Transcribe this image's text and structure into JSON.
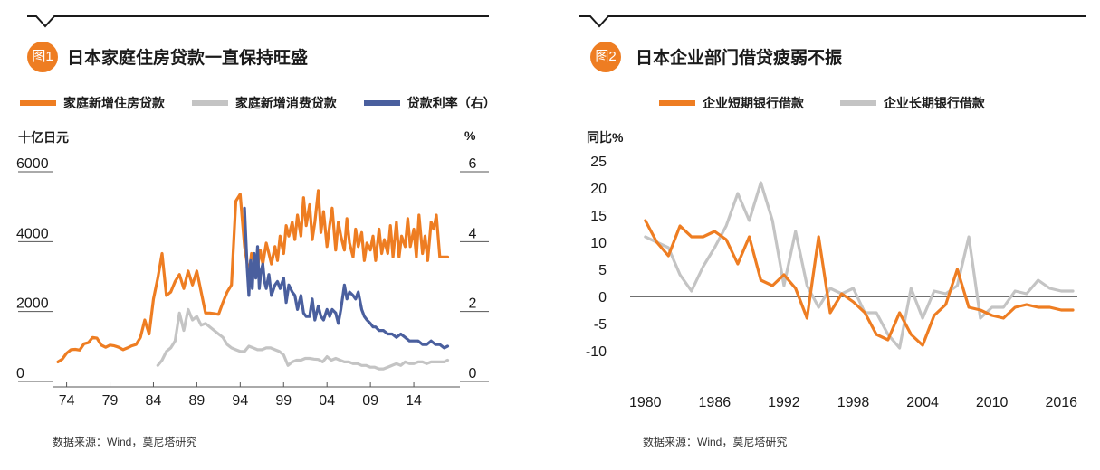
{
  "colors": {
    "orange": "#ee7d22",
    "gray": "#c4c4c4",
    "blue": "#4a5f9e",
    "text": "#1a1a1a"
  },
  "charts": [
    {
      "badge": "图1",
      "title": "日本家庭住房贷款一直保持旺盛",
      "source": "数据来源：Wind，莫尼塔研究",
      "left_unit": "十亿日元",
      "right_unit": "%"
    },
    {
      "badge": "图2",
      "title": "日本企业部门借贷疲弱不振",
      "source": "数据来源：Wind，莫尼塔研究",
      "left_unit": "同比%"
    }
  ],
  "chart_data": [
    {
      "type": "line",
      "title": "日本家庭住房贷款一直保持旺盛",
      "ylabel": "十亿日元",
      "y2label": "%",
      "ylim": [
        0,
        6000
      ],
      "y2lim": [
        0,
        6
      ],
      "yticks": [
        "0",
        "2000",
        "4000",
        "6000"
      ],
      "y2ticks": [
        "0",
        "2",
        "4",
        "6"
      ],
      "xlim": [
        1973,
        2019
      ],
      "xticks": [
        {
          "label": "74",
          "value": 1974
        },
        {
          "label": "79",
          "value": 1979
        },
        {
          "label": "84",
          "value": 1984
        },
        {
          "label": "89",
          "value": 1989
        },
        {
          "label": "94",
          "value": 1994
        },
        {
          "label": "99",
          "value": 1999
        },
        {
          "label": "04",
          "value": 2004
        },
        {
          "label": "09",
          "value": 2009
        },
        {
          "label": "14",
          "value": 2014
        }
      ],
      "series": [
        {
          "name": "家庭新增住房贷款",
          "color": "#ee7d22",
          "axis": "left",
          "x": [
            1973.0,
            1973.5,
            1974.0,
            1974.5,
            1975.0,
            1975.5,
            1976.0,
            1976.5,
            1977.0,
            1977.5,
            1978.0,
            1978.5,
            1979.0,
            1979.5,
            1980.0,
            1980.5,
            1981.0,
            1981.5,
            1982.0,
            1982.5,
            1983.0,
            1983.5,
            1984.0,
            1984.5,
            1985.0,
            1985.5,
            1986.0,
            1986.5,
            1987.0,
            1987.5,
            1988.0,
            1988.5,
            1989.0,
            1989.5,
            1990.0,
            1990.5,
            1991.0,
            1991.5,
            1992.0,
            1992.5,
            1993.0,
            1993.5,
            1994.0,
            1994.5,
            1995.0,
            1995.3,
            1995.6,
            1996.0,
            1996.3,
            1996.6,
            1997.0,
            1997.3,
            1997.6,
            1998.0,
            1998.3,
            1998.6,
            1999.0,
            1999.3,
            1999.6,
            2000.0,
            2000.3,
            2000.6,
            2001.0,
            2001.3,
            2001.6,
            2002.0,
            2002.3,
            2002.6,
            2003.0,
            2003.3,
            2003.6,
            2004.0,
            2004.3,
            2004.6,
            2005.0,
            2005.3,
            2005.6,
            2006.0,
            2006.3,
            2006.6,
            2007.0,
            2007.3,
            2007.6,
            2008.0,
            2008.3,
            2008.6,
            2009.0,
            2009.3,
            2009.6,
            2010.0,
            2010.3,
            2010.6,
            2011.0,
            2011.3,
            2011.6,
            2012.0,
            2012.3,
            2012.6,
            2013.0,
            2013.3,
            2013.6,
            2014.0,
            2014.3,
            2014.6,
            2015.0,
            2015.3,
            2015.6,
            2016.0,
            2016.3,
            2016.6,
            2017.0,
            2017.3,
            2017.6,
            2017.9
          ],
          "values": [
            300,
            380,
            550,
            650,
            660,
            640,
            820,
            850,
            1000,
            980,
            780,
            720,
            780,
            760,
            720,
            650,
            700,
            760,
            800,
            1000,
            1500,
            1100,
            2100,
            2700,
            3400,
            2200,
            2300,
            2600,
            2800,
            2400,
            2900,
            2500,
            2900,
            2300,
            1700,
            1700,
            1680,
            1660,
            2000,
            2300,
            2500,
            4900,
            5100,
            3600,
            2800,
            3400,
            3200,
            3000,
            3500,
            3100,
            3700,
            3400,
            3100,
            3600,
            3200,
            3900,
            3400,
            4200,
            3900,
            4300,
            3800,
            4500,
            3900,
            5000,
            4200,
            4800,
            3800,
            4300,
            5200,
            4000,
            4600,
            3600,
            4200,
            4700,
            3500,
            4300,
            3900,
            3500,
            4400,
            3700,
            3300,
            4100,
            3600,
            4000,
            3200,
            3700,
            3500,
            3900,
            3200,
            4100,
            3400,
            3800,
            3400,
            4200,
            3300,
            4300,
            3300,
            3900,
            3600,
            4400,
            3600,
            4100,
            3300,
            4500,
            3400,
            3900,
            3200,
            4300,
            4100,
            4500,
            3300,
            3300,
            3300,
            3300
          ]
        },
        {
          "name": "家庭新增消费贷款",
          "color": "#c4c4c4",
          "axis": "left",
          "x": [
            1984.5,
            1985.0,
            1985.5,
            1986.0,
            1986.5,
            1987.0,
            1987.5,
            1988.0,
            1988.5,
            1989.0,
            1989.5,
            1990.0,
            1990.5,
            1991.0,
            1991.5,
            1992.0,
            1992.5,
            1993.0,
            1993.5,
            1994.0,
            1994.5,
            1995.0,
            1995.5,
            1996.0,
            1996.5,
            1997.0,
            1997.5,
            1998.0,
            1998.5,
            1999.0,
            1999.5,
            2000.0,
            2000.5,
            2001.0,
            2001.5,
            2002.0,
            2002.5,
            2003.0,
            2003.5,
            2004.0,
            2004.5,
            2005.0,
            2005.5,
            2006.0,
            2006.5,
            2007.0,
            2007.5,
            2008.0,
            2008.5,
            2009.0,
            2009.5,
            2010.0,
            2010.5,
            2011.0,
            2011.5,
            2012.0,
            2012.5,
            2013.0,
            2013.5,
            2014.0,
            2014.5,
            2015.0,
            2015.5,
            2016.0,
            2016.5,
            2017.0,
            2017.5,
            2017.9
          ],
          "values": [
            200,
            350,
            600,
            700,
            900,
            1700,
            1200,
            1800,
            1500,
            1600,
            1350,
            1400,
            1300,
            1200,
            1100,
            1000,
            800,
            700,
            650,
            600,
            600,
            750,
            700,
            650,
            650,
            700,
            700,
            650,
            600,
            500,
            200,
            300,
            350,
            350,
            400,
            400,
            380,
            370,
            300,
            450,
            350,
            400,
            350,
            300,
            300,
            250,
            250,
            200,
            200,
            150,
            150,
            100,
            100,
            150,
            200,
            250,
            200,
            300,
            250,
            250,
            300,
            300,
            250,
            300,
            300,
            300,
            300,
            350
          ]
        },
        {
          "name": "贷款利率（右）",
          "color": "#4a5f9e",
          "axis": "right",
          "x": [
            1994.5,
            1994.8,
            1995.0,
            1995.2,
            1995.4,
            1995.6,
            1995.8,
            1996.0,
            1996.2,
            1996.4,
            1996.6,
            1996.8,
            1997.0,
            1997.3,
            1997.6,
            1998.0,
            1998.3,
            1998.6,
            1999.0,
            1999.3,
            1999.6,
            2000.0,
            2000.3,
            2000.6,
            2001.0,
            2001.3,
            2001.6,
            2002.0,
            2002.3,
            2002.6,
            2003.0,
            2003.3,
            2003.6,
            2004.0,
            2004.3,
            2004.6,
            2005.0,
            2005.3,
            2005.6,
            2006.0,
            2006.3,
            2006.6,
            2007.0,
            2007.3,
            2007.6,
            2008.0,
            2008.3,
            2008.6,
            2009.0,
            2009.3,
            2009.6,
            2010.0,
            2010.5,
            2011.0,
            2011.5,
            2012.0,
            2012.5,
            2013.0,
            2013.5,
            2014.0,
            2014.5,
            2015.0,
            2015.5,
            2016.0,
            2016.5,
            2017.0,
            2017.5,
            2017.9
          ],
          "values": [
            4.7,
            3.0,
            2.2,
            3.2,
            2.4,
            3.4,
            2.7,
            3.6,
            2.4,
            2.9,
            3.1,
            2.6,
            2.4,
            2.8,
            2.2,
            2.5,
            2.6,
            2.4,
            2.7,
            2.0,
            2.5,
            2.3,
            2.2,
            1.8,
            2.2,
            1.7,
            1.6,
            1.6,
            2.1,
            1.5,
            1.9,
            1.6,
            1.5,
            1.8,
            1.6,
            1.8,
            1.7,
            1.4,
            1.8,
            2.5,
            2.1,
            2.3,
            2.2,
            2.1,
            2.3,
            1.8,
            1.6,
            1.5,
            1.4,
            1.3,
            1.3,
            1.2,
            1.2,
            1.1,
            1.1,
            1.0,
            1.1,
            1.0,
            0.9,
            0.9,
            0.9,
            0.8,
            0.8,
            0.9,
            0.8,
            0.8,
            0.7,
            0.75
          ]
        }
      ]
    },
    {
      "type": "line",
      "title": "日本企业部门借贷疲弱不振",
      "ylabel": "同比%",
      "ylim": [
        -10,
        25
      ],
      "yticks": [
        "25",
        "20",
        "15",
        "10",
        "5",
        "0",
        "-5",
        "-10"
      ],
      "xlim": [
        1979,
        2017
      ],
      "xticks": [
        {
          "label": "1980",
          "value": 1980
        },
        {
          "label": "1986",
          "value": 1986
        },
        {
          "label": "1992",
          "value": 1992
        },
        {
          "label": "1998",
          "value": 1998
        },
        {
          "label": "2004",
          "value": 2004
        },
        {
          "label": "2010",
          "value": 2010
        },
        {
          "label": "2016",
          "value": 2016
        }
      ],
      "series": [
        {
          "name": "企业短期银行借款",
          "color": "#ee7d22",
          "x": [
            1980,
            1981,
            1982,
            1983,
            1984,
            1985,
            1986,
            1987,
            1988,
            1989,
            1990,
            1991,
            1992,
            1993,
            1994,
            1995,
            1996,
            1997,
            1998,
            1999,
            2000,
            2001,
            2002,
            2003,
            2004,
            2005,
            2006,
            2007,
            2008,
            2009,
            2010,
            2011,
            2012,
            2013,
            2014,
            2015,
            2016,
            2017
          ],
          "values": [
            14,
            10,
            7.5,
            13,
            11,
            11,
            12,
            10.5,
            6,
            11,
            3,
            2,
            4,
            1.5,
            -4,
            11,
            -3,
            0.5,
            -1,
            -3,
            -7,
            -8,
            -3,
            -7,
            -9,
            -3.5,
            -1.5,
            5,
            -2,
            -2.5,
            -3.5,
            -4,
            -2,
            -1.5,
            -2,
            -2,
            -2.5,
            -2.5
          ]
        },
        {
          "name": "企业长期银行借款",
          "color": "#c4c4c4",
          "x": [
            1980,
            1981,
            1982,
            1983,
            1984,
            1985,
            1986,
            1987,
            1988,
            1989,
            1990,
            1991,
            1992,
            1993,
            1994,
            1995,
            1996,
            1997,
            1998,
            1999,
            2000,
            2001,
            2002,
            2003,
            2004,
            2005,
            2006,
            2007,
            2008,
            2009,
            2010,
            2011,
            2012,
            2013,
            2014,
            2015,
            2016,
            2017
          ],
          "values": [
            11,
            10,
            9,
            4,
            1,
            5.5,
            9,
            13,
            19,
            14,
            21,
            14,
            2,
            12,
            2,
            -2,
            1.5,
            0.5,
            1.5,
            -3,
            -3,
            -7,
            -9.5,
            1.5,
            -4,
            1,
            0.5,
            2,
            11,
            -4,
            -2,
            -2,
            1,
            0.5,
            3,
            1.5,
            1,
            1
          ]
        }
      ]
    }
  ]
}
